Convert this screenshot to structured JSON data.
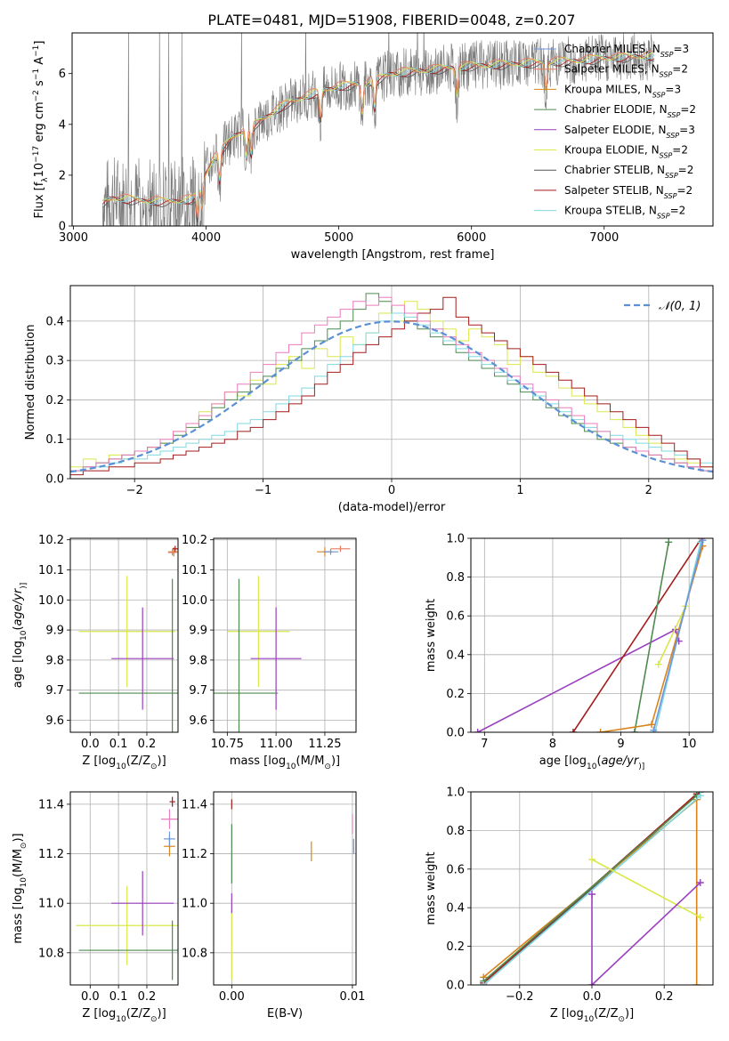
{
  "figure": {
    "title": "PLATE=0481, MJD=51908, FIBERID=0048, z=0.207"
  },
  "colors": {
    "Chabrier MILES": "#6f93d8",
    "Salpeter MILES": "#e87a5e",
    "Kroupa MILES": "#d8841a",
    "Chabrier ELODIE": "#4f8a4f",
    "Salpeter ELODIE": "#9a3fbf",
    "Kroupa ELODIE": "#d9e84a",
    "Chabrier STELIB": "#555555",
    "Salpeter STELIB": "#a51c1c",
    "Kroupa STELIB": "#80d8e0",
    "pink": "#ea7dbb",
    "normal": "#5b8fd6",
    "data": "#7a7a7a"
  },
  "chart_data": [
    {
      "id": "spectrum",
      "type": "line",
      "xlabel": "wavelength [Angstrom, rest frame]",
      "ylabel": "Flux [f$_\\lambda$ 10$^{-17}$ erg cm$^{-2}$ s$^{-1}$ A$^{-1}$]",
      "ylabel_parts": [
        "Flux [f",
        "λ",
        "10",
        "−17",
        " erg cm",
        "−2",
        " s",
        "−1",
        " A",
        "−1",
        "]"
      ],
      "xlim": [
        2990,
        7820
      ],
      "ylim": [
        0,
        7.6
      ],
      "xticks": [
        3000,
        4000,
        5000,
        6000,
        7000
      ],
      "yticks": [
        0,
        2,
        4,
        6
      ],
      "grid": false,
      "legend_position": "upper-right",
      "continuum_x": [
        3220,
        3300,
        3500,
        3700,
        3900,
        4050,
        4200,
        4400,
        4600,
        4800,
        5000,
        5200,
        5400,
        5600,
        5800,
        6000,
        6200,
        6400,
        6600,
        6800,
        7000,
        7200,
        7400
      ],
      "continuum_y": [
        0.9,
        1.1,
        1.0,
        0.95,
        1.05,
        2.6,
        3.5,
        4.1,
        4.8,
        5.2,
        5.5,
        5.6,
        6.0,
        6.1,
        6.2,
        6.3,
        6.35,
        6.4,
        6.45,
        6.5,
        6.6,
        6.65,
        6.7
      ],
      "absorption_lines_x": [
        3934,
        3969,
        4102,
        4304,
        4340,
        4861,
        5175,
        5270,
        5890,
        6563
      ],
      "series": [
        {
          "name": "Chabrier MILES",
          "n_ssp": "3"
        },
        {
          "name": "Salpeter MILES",
          "n_ssp": "2"
        },
        {
          "name": "Kroupa MILES",
          "n_ssp": "3"
        },
        {
          "name": "Chabrier ELODIE",
          "n_ssp": "2"
        },
        {
          "name": "Salpeter ELODIE",
          "n_ssp": "3"
        },
        {
          "name": "Kroupa ELODIE",
          "n_ssp": "2"
        },
        {
          "name": "Chabrier STELIB",
          "n_ssp": "2"
        },
        {
          "name": "Salpeter STELIB",
          "n_ssp": "2"
        },
        {
          "name": "Kroupa STELIB",
          "n_ssp": "2"
        }
      ],
      "legend_n_label": "N",
      "legend_n_sub": "SSP"
    },
    {
      "id": "residuals",
      "type": "line",
      "xlabel": "(data-model)/error",
      "ylabel": "Normed distribution",
      "xlim": [
        -2.5,
        2.5
      ],
      "ylim": [
        0,
        0.49
      ],
      "xticks": [
        -2,
        -1,
        0,
        1,
        2
      ],
      "xtick_labels": [
        "−2",
        "−1",
        "0",
        "1",
        "2"
      ],
      "yticks": [
        0.0,
        0.1,
        0.2,
        0.3,
        0.4
      ],
      "ytick_labels": [
        "0.0",
        "0.1",
        "0.2",
        "0.3",
        "0.4"
      ],
      "grid": true,
      "legend_position": "upper-right",
      "legend_label": "𝒩(0, 1)",
      "bin_width": 0.1,
      "histograms": [
        {
          "series": "Kroupa ELODIE",
          "values": [
            0.03,
            0.05,
            0.04,
            0.06,
            0.05,
            0.07,
            0.08,
            0.09,
            0.12,
            0.14,
            0.17,
            0.19,
            0.22,
            0.21,
            0.25,
            0.24,
            0.29,
            0.31,
            0.28,
            0.33,
            0.31,
            0.36,
            0.34,
            0.37,
            0.42,
            0.4,
            0.45,
            0.43,
            0.4,
            0.38,
            0.35,
            0.38,
            0.36,
            0.34,
            0.29,
            0.31,
            0.27,
            0.26,
            0.23,
            0.21,
            0.19,
            0.17,
            0.15,
            0.13,
            0.11,
            0.09,
            0.07,
            0.05,
            0.04,
            0.03
          ]
        },
        {
          "series": "Chabrier ELODIE",
          "values": [
            0.02,
            0.03,
            0.04,
            0.05,
            0.06,
            0.07,
            0.08,
            0.09,
            0.11,
            0.13,
            0.15,
            0.18,
            0.2,
            0.22,
            0.24,
            0.26,
            0.28,
            0.3,
            0.33,
            0.35,
            0.38,
            0.4,
            0.43,
            0.47,
            0.45,
            0.42,
            0.4,
            0.38,
            0.36,
            0.34,
            0.32,
            0.3,
            0.28,
            0.26,
            0.24,
            0.22,
            0.2,
            0.18,
            0.16,
            0.14,
            0.12,
            0.1,
            0.09,
            0.08,
            0.07,
            0.06,
            0.05,
            0.04,
            0.03,
            0.02
          ]
        },
        {
          "series": "Kroupa STELIB",
          "values": [
            0.02,
            0.03,
            0.03,
            0.04,
            0.05,
            0.05,
            0.06,
            0.07,
            0.08,
            0.09,
            0.1,
            0.11,
            0.12,
            0.14,
            0.15,
            0.17,
            0.19,
            0.21,
            0.23,
            0.26,
            0.29,
            0.31,
            0.34,
            0.37,
            0.4,
            0.42,
            0.41,
            0.39,
            0.37,
            0.35,
            0.33,
            0.31,
            0.29,
            0.27,
            0.25,
            0.23,
            0.21,
            0.19,
            0.17,
            0.15,
            0.13,
            0.12,
            0.11,
            0.1,
            0.09,
            0.08,
            0.07,
            0.06,
            0.05,
            0.04
          ]
        },
        {
          "series": "Salpeter STELIB",
          "values": [
            0.01,
            0.02,
            0.02,
            0.03,
            0.03,
            0.04,
            0.04,
            0.05,
            0.06,
            0.07,
            0.08,
            0.09,
            0.1,
            0.12,
            0.13,
            0.15,
            0.17,
            0.19,
            0.21,
            0.24,
            0.27,
            0.29,
            0.32,
            0.34,
            0.36,
            0.38,
            0.4,
            0.42,
            0.43,
            0.46,
            0.41,
            0.39,
            0.37,
            0.35,
            0.33,
            0.31,
            0.29,
            0.27,
            0.25,
            0.23,
            0.21,
            0.19,
            0.17,
            0.15,
            0.13,
            0.11,
            0.09,
            0.07,
            0.05,
            0.03
          ]
        },
        {
          "series": "pink",
          "values": [
            0.02,
            0.03,
            0.04,
            0.05,
            0.06,
            0.07,
            0.08,
            0.1,
            0.12,
            0.14,
            0.16,
            0.19,
            0.22,
            0.24,
            0.27,
            0.29,
            0.32,
            0.34,
            0.37,
            0.39,
            0.41,
            0.43,
            0.45,
            0.44,
            0.46,
            0.44,
            0.42,
            0.4,
            0.38,
            0.36,
            0.34,
            0.32,
            0.3,
            0.28,
            0.26,
            0.24,
            0.22,
            0.2,
            0.18,
            0.16,
            0.14,
            0.12,
            0.1,
            0.08,
            0.07,
            0.06,
            0.05,
            0.04,
            0.03,
            0.02
          ]
        }
      ],
      "normal_curve": {
        "mean": 0,
        "sigma": 1
      }
    },
    {
      "id": "age_vs_Z",
      "type": "scatter",
      "xlabel": "Z [log$_{10}$(Z/Z$_\\odot$)]",
      "xlabel_parts": [
        "Z [log",
        "10",
        "(",
        "Z/Z",
        "⊙",
        ")]"
      ],
      "ylabel": "age  [log$_{10}$(age/yr)]",
      "ylabel_parts": [
        "age  [log",
        "10",
        "(",
        "age/yr",
        ")]"
      ],
      "xlim": [
        -0.07,
        0.31
      ],
      "ylim": [
        9.56,
        10.205
      ],
      "xticks": [
        0.0,
        0.1,
        0.2
      ],
      "xtick_labels": [
        "0.0",
        "0.1",
        "0.2"
      ],
      "yticks": [
        9.6,
        9.7,
        9.8,
        9.9,
        10.0,
        10.1,
        10.2
      ],
      "ytick_labels": [
        "9.6",
        "9.7",
        "9.8",
        "9.9",
        "10.0",
        "10.1",
        "10.2"
      ],
      "grid": true,
      "points": [
        {
          "series": "Kroupa ELODIE",
          "x": 0.13,
          "y": 9.895,
          "xerr": 0.17,
          "yerr": 0.185
        },
        {
          "series": "Salpeter ELODIE",
          "x": 0.185,
          "y": 9.805,
          "xerr": 0.11,
          "yerr": 0.17
        },
        {
          "series": "Chabrier ELODIE",
          "x": 0.29,
          "y": 9.69,
          "xerr": 0.33,
          "yerr": 0.38
        },
        {
          "series": "Kroupa MILES",
          "x": 0.295,
          "y": 10.16,
          "xerr": 0.02,
          "yerr": 0.015
        },
        {
          "series": "Salpeter STELIB",
          "x": 0.3,
          "y": 10.17,
          "xerr": 0.01,
          "yerr": 0.01
        },
        {
          "series": "Salpeter MILES",
          "x": 0.29,
          "y": 10.158,
          "xerr": 0.015,
          "yerr": 0.01
        }
      ]
    },
    {
      "id": "age_vs_mass",
      "type": "scatter",
      "xlabel": "mass [log$_{10}$(M/M$_\\odot$)]",
      "xlabel_parts": [
        "mass [log",
        "10",
        "(",
        "M/M",
        "⊙",
        ")]"
      ],
      "ylabel": "",
      "xlim": [
        10.68,
        11.41
      ],
      "ylim": [
        9.56,
        10.205
      ],
      "xticks": [
        10.75,
        11.0,
        11.25
      ],
      "xtick_labels": [
        "10.75",
        "11.00",
        "11.25"
      ],
      "yticks": [
        9.6,
        9.7,
        9.8,
        9.9,
        10.0,
        10.1,
        10.2
      ],
      "ytick_labels": [
        "9.6",
        "9.7",
        "9.8",
        "9.9",
        "10.0",
        "10.1",
        "10.2"
      ],
      "grid": true,
      "points": [
        {
          "series": "Kroupa ELODIE",
          "x": 10.91,
          "y": 9.895,
          "xerr": 0.16,
          "yerr": 0.185
        },
        {
          "series": "Salpeter ELODIE",
          "x": 11.0,
          "y": 9.805,
          "xerr": 0.13,
          "yerr": 0.17
        },
        {
          "series": "Chabrier ELODIE",
          "x": 10.81,
          "y": 9.69,
          "xerr": 0.2,
          "yerr": 0.38
        },
        {
          "series": "Kroupa MILES",
          "x": 11.25,
          "y": 10.16,
          "xerr": 0.04,
          "yerr": 0.015
        },
        {
          "series": "Salpeter MILES",
          "x": 11.33,
          "y": 10.17,
          "xerr": 0.05,
          "yerr": 0.01
        },
        {
          "series": "Chabrier MILES",
          "x": 11.28,
          "y": 10.16,
          "xerr": 0.04,
          "yerr": 0.01
        }
      ]
    },
    {
      "id": "weight_vs_age",
      "type": "line",
      "xlabel": "age  [log$_{10}$(age/yr)]",
      "xlabel_parts": [
        "age  [log",
        "10",
        "(",
        "age/yr",
        ")]"
      ],
      "ylabel": "mass weight",
      "xlim": [
        6.8,
        10.35
      ],
      "ylim": [
        0,
        1.0
      ],
      "xticks": [
        7,
        8,
        9,
        10
      ],
      "xtick_labels": [
        "7",
        "8",
        "9",
        "10"
      ],
      "yticks": [
        0.0,
        0.2,
        0.4,
        0.6,
        0.8,
        1.0
      ],
      "ytick_labels": [
        "0.0",
        "0.2",
        "0.4",
        "0.6",
        "0.8",
        "1.0"
      ],
      "grid": true,
      "lines": [
        {
          "series": "Salpeter ELODIE",
          "x": [
            6.9,
            9.8,
            9.85
          ],
          "y": [
            0.0,
            0.53,
            0.47
          ]
        },
        {
          "series": "Salpeter STELIB",
          "x": [
            8.3,
            10.18
          ],
          "y": [
            0.0,
            1.0
          ]
        },
        {
          "series": "Chabrier ELODIE",
          "x": [
            9.2,
            9.7
          ],
          "y": [
            0.0,
            0.98
          ]
        },
        {
          "series": "Kroupa ELODIE",
          "x": [
            9.55,
            9.95
          ],
          "y": [
            0.35,
            0.65
          ]
        },
        {
          "series": "Kroupa MILES",
          "x": [
            8.7,
            9.45,
            10.2
          ],
          "y": [
            0.0,
            0.04,
            0.96
          ]
        },
        {
          "series": "Kroupa STELIB",
          "x": [
            9.5,
            10.17
          ],
          "y": [
            0.0,
            0.98
          ]
        },
        {
          "series": "Chabrier MILES",
          "x": [
            9.48,
            10.2
          ],
          "y": [
            0.01,
            0.99
          ]
        }
      ]
    },
    {
      "id": "mass_vs_Z",
      "type": "scatter",
      "xlabel": "Z [log$_{10}$(Z/Z$_\\odot$)]",
      "xlabel_parts": [
        "Z [log",
        "10",
        "(",
        "Z/Z",
        "⊙",
        ")]"
      ],
      "ylabel": "mass [log$_{10}$(M/M$_\\odot$)]",
      "ylabel_parts": [
        "mass [log",
        "10",
        "(",
        "M/M",
        "⊙",
        ")]"
      ],
      "xlim": [
        -0.07,
        0.31
      ],
      "ylim": [
        10.67,
        11.45
      ],
      "xticks": [
        0.0,
        0.1,
        0.2
      ],
      "xtick_labels": [
        "0.0",
        "0.1",
        "0.2"
      ],
      "yticks": [
        10.8,
        11.0,
        11.2,
        11.4
      ],
      "ytick_labels": [
        "10.8",
        "11.0",
        "11.2",
        "11.4"
      ],
      "grid": true,
      "points": [
        {
          "series": "Kroupa ELODIE",
          "x": 0.13,
          "y": 10.91,
          "xerr": 0.18,
          "yerr": 0.16
        },
        {
          "series": "Salpeter ELODIE",
          "x": 0.185,
          "y": 11.0,
          "xerr": 0.11,
          "yerr": 0.13
        },
        {
          "series": "Chabrier ELODIE",
          "x": 0.29,
          "y": 10.81,
          "xerr": 0.33,
          "yerr": 0.12
        },
        {
          "series": "Kroupa MILES",
          "x": 0.28,
          "y": 11.23,
          "xerr": 0.02,
          "yerr": 0.04
        },
        {
          "series": "Chabrier MILES",
          "x": 0.28,
          "y": 11.26,
          "xerr": 0.02,
          "yerr": 0.03
        },
        {
          "series": "pink",
          "x": 0.28,
          "y": 11.34,
          "xerr": 0.03,
          "yerr": 0.04
        },
        {
          "series": "Salpeter STELIB",
          "x": 0.29,
          "y": 11.41,
          "xerr": 0.01,
          "yerr": 0.02
        }
      ]
    },
    {
      "id": "mass_vs_ebv",
      "type": "scatter",
      "xlabel": "E(B-V)",
      "ylabel": "",
      "xlim": [
        -0.0015,
        0.0103
      ],
      "ylim": [
        10.67,
        11.45
      ],
      "xticks": [
        0.0,
        0.01
      ],
      "xtick_labels": [
        "0.00",
        "0.01"
      ],
      "yticks": [
        10.8,
        11.0,
        11.2,
        11.4
      ],
      "ytick_labels": [
        "10.8",
        "11.0",
        "11.2",
        "11.4"
      ],
      "grid": true,
      "points": [
        {
          "series": "Kroupa ELODIE",
          "x": 0.0,
          "y": 10.85,
          "xerr": 0,
          "yerr": 0.16
        },
        {
          "series": "Salpeter ELODIE",
          "x": 0.0,
          "y": 11.0,
          "xerr": 0,
          "yerr": 0.04
        },
        {
          "series": "Chabrier ELODIE",
          "x": 0.0,
          "y": 11.2,
          "xerr": 0,
          "yerr": 0.12
        },
        {
          "series": "Salpeter STELIB",
          "x": 0.0,
          "y": 11.4,
          "xerr": 0,
          "yerr": 0.02
        },
        {
          "series": "Kroupa MILES",
          "x": 0.0066,
          "y": 11.21,
          "xerr": 0,
          "yerr": 0.04
        },
        {
          "series": "Chabrier MILES",
          "x": 0.0101,
          "y": 11.23,
          "xerr": 0,
          "yerr": 0.03
        },
        {
          "series": "pink",
          "x": 0.01,
          "y": 11.32,
          "xerr": 0,
          "yerr": 0.04
        }
      ]
    },
    {
      "id": "weight_vs_Z",
      "type": "line",
      "xlabel": "Z [log$_{10}$(Z/Z$_\\odot$)]",
      "xlabel_parts": [
        "Z [log",
        "10",
        "(",
        "Z/Z",
        "⊙",
        ")]"
      ],
      "ylabel": "mass weight",
      "xlim": [
        -0.335,
        0.335
      ],
      "ylim": [
        0,
        1.0
      ],
      "xticks": [
        -0.2,
        0.0,
        0.2
      ],
      "xtick_labels": [
        "−0.2",
        "0.0",
        "0.2"
      ],
      "yticks": [
        0.0,
        0.2,
        0.4,
        0.6,
        0.8,
        1.0
      ],
      "ytick_labels": [
        "0.0",
        "0.2",
        "0.4",
        "0.6",
        "0.8",
        "1.0"
      ],
      "grid": true,
      "lines": [
        {
          "series": "Chabrier STELIB",
          "x": [
            -0.3,
            0.3
          ],
          "y": [
            0.0,
            1.0
          ]
        },
        {
          "series": "Salpeter STELIB",
          "x": [
            -0.3,
            0.29
          ],
          "y": [
            0.01,
            0.99
          ]
        },
        {
          "series": "Kroupa MILES",
          "x": [
            -0.3,
            0.29,
            0.29
          ],
          "y": [
            0.04,
            0.96,
            0.0
          ]
        },
        {
          "series": "Chabrier ELODIE",
          "x": [
            -0.3,
            0.29
          ],
          "y": [
            0.02,
            0.98
          ]
        },
        {
          "series": "Kroupa STELIB",
          "x": [
            -0.3,
            0.3
          ],
          "y": [
            0.0,
            0.98
          ]
        },
        {
          "series": "Kroupa ELODIE",
          "x": [
            0.0,
            0.3
          ],
          "y": [
            0.65,
            0.35
          ]
        },
        {
          "series": "Salpeter ELODIE",
          "x": [
            0.0,
            0.0,
            0.3
          ],
          "y": [
            0.47,
            0.0,
            0.53
          ]
        }
      ]
    }
  ]
}
